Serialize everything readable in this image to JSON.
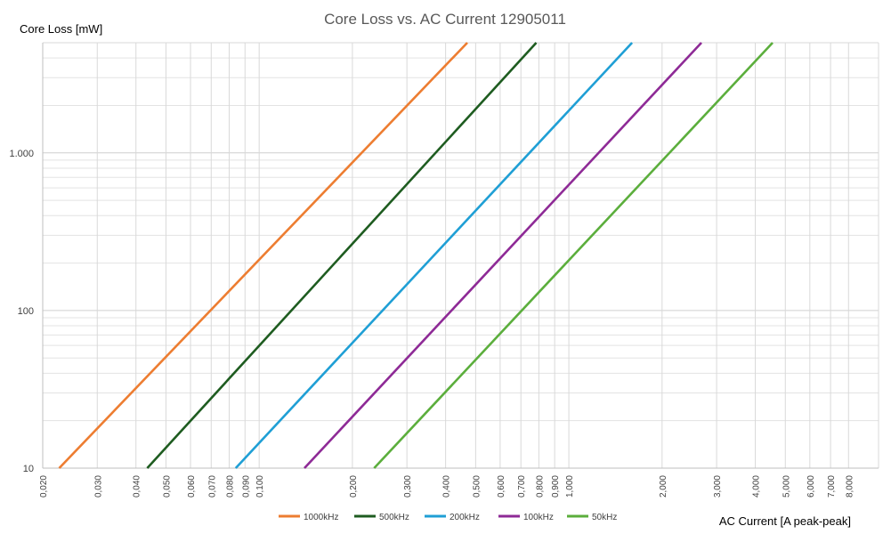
{
  "chart_data": {
    "type": "line",
    "title": "Core Loss vs. AC Current 12905011",
    "xlabel": "AC Current [A peak-peak]",
    "ylabel": "Core Loss [mW]",
    "xscale": "log",
    "yscale": "log",
    "xlim": [
      0.02,
      10
    ],
    "ylim": [
      10,
      5000
    ],
    "grid": true,
    "legend_position": "bottom",
    "x_tick_values": [
      0.02,
      0.03,
      0.04,
      0.05,
      0.06,
      0.07,
      0.08,
      0.09,
      0.1,
      0.2,
      0.3,
      0.4,
      0.5,
      0.6,
      0.7,
      0.8,
      0.9,
      1,
      2,
      3,
      4,
      5,
      6,
      7,
      8
    ],
    "x_tick_labels": [
      "0,020",
      "0,030",
      "0,040",
      "0,050",
      "0,060",
      "0,070",
      "0,080",
      "0,090",
      "0,100",
      "0,200",
      "0,300",
      "0,400",
      "0,500",
      "0,600",
      "0,700",
      "0,800",
      "0,900",
      "1,000",
      "2,000",
      "3,000",
      "4,000",
      "5,000",
      "6,000",
      "7,000",
      "8,000"
    ],
    "y_tick_values": [
      10,
      100,
      1000
    ],
    "y_tick_labels": [
      "10",
      "100",
      "1.000"
    ],
    "series": [
      {
        "name": "1000kHz",
        "color": "#ED7D31",
        "x": [
          0.0226,
          0.47
        ],
        "y": [
          10,
          5000
        ]
      },
      {
        "name": "500kHz",
        "color": "#1E5C20",
        "x": [
          0.0435,
          0.785
        ],
        "y": [
          10,
          5000
        ]
      },
      {
        "name": "200kHz",
        "color": "#1F9FD5",
        "x": [
          0.084,
          1.6
        ],
        "y": [
          10,
          5000
        ]
      },
      {
        "name": "100kHz",
        "color": "#8E2A96",
        "x": [
          0.14,
          2.68
        ],
        "y": [
          10,
          5000
        ]
      },
      {
        "name": "50kHz",
        "color": "#5BAE3C",
        "x": [
          0.235,
          4.55
        ],
        "y": [
          10,
          5000
        ]
      }
    ]
  }
}
